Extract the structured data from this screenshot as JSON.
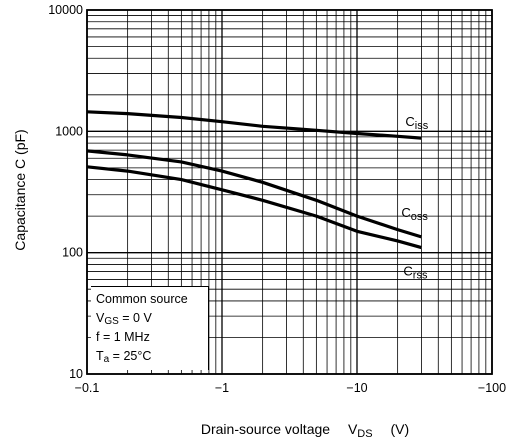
{
  "chart_data": {
    "type": "line",
    "xlabel": "Drain-source voltage",
    "xlabel_symbol": "V",
    "xlabel_symbol_sub": "DS",
    "xlabel_unit": "(V)",
    "ylabel": "Capacitance C (pF)",
    "x_scale": "log",
    "y_scale": "log",
    "xlim": [
      -0.1,
      -100
    ],
    "ylim": [
      10,
      10000
    ],
    "x_ticks": [
      "−0.1",
      "−1",
      "−10",
      "−100"
    ],
    "y_ticks": [
      "10",
      "100",
      "1000",
      "10000"
    ],
    "grid": true,
    "series": [
      {
        "name_main": "C",
        "name_sub": "iss",
        "x": [
          -0.1,
          -0.2,
          -0.5,
          -1,
          -2,
          -5,
          -10,
          -20,
          -30
        ],
        "y": [
          1450,
          1400,
          1300,
          1200,
          1100,
          1020,
          960,
          910,
          880
        ]
      },
      {
        "name_main": "C",
        "name_sub": "oss",
        "x": [
          -0.1,
          -0.2,
          -0.5,
          -1,
          -2,
          -5,
          -10,
          -20,
          -30
        ],
        "y": [
          690,
          640,
          560,
          470,
          380,
          270,
          200,
          155,
          135
        ]
      },
      {
        "name_main": "C",
        "name_sub": "rss",
        "x": [
          -0.1,
          -0.2,
          -0.5,
          -1,
          -2,
          -5,
          -10,
          -20,
          -30
        ],
        "y": [
          510,
          470,
          400,
          330,
          270,
          200,
          150,
          125,
          110
        ]
      }
    ],
    "conditions": {
      "line1": "Common source",
      "line2_main": "V",
      "line2_sub": "GS",
      "line2_rest": " = 0 V",
      "line3": "f = 1 MHz",
      "line4_main": "T",
      "line4_sub": "a",
      "line4_rest": " = 25°C"
    }
  }
}
